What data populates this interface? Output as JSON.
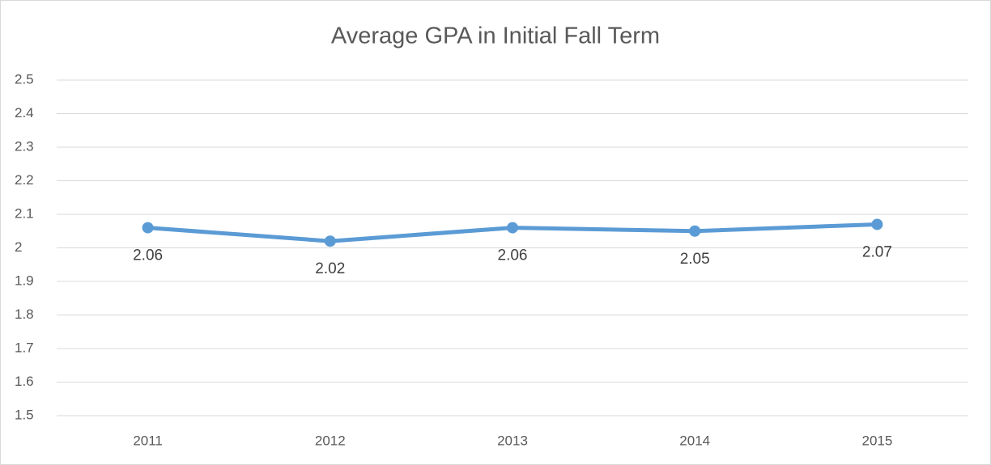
{
  "chart_data": {
    "type": "line",
    "title": "Average GPA in Initial Fall Term",
    "categories": [
      "2011",
      "2012",
      "2013",
      "2014",
      "2015"
    ],
    "values": [
      2.06,
      2.02,
      2.06,
      2.05,
      2.07
    ],
    "color": "#5b9bd5",
    "ylim": [
      1.5,
      2.5
    ],
    "yticks": [
      1.5,
      1.6,
      1.7,
      1.8,
      1.9,
      2,
      2.1,
      2.2,
      2.3,
      2.4,
      2.5
    ],
    "grid": true
  }
}
